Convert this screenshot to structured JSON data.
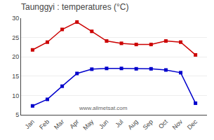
{
  "chart_data": {
    "type": "line",
    "title": "Taunggyi : temperatures (°C)",
    "categories": [
      "Jan",
      "Feb",
      "Mar",
      "Apr",
      "May",
      "Jun",
      "Jul",
      "Aug",
      "Sep",
      "Oct",
      "Nov",
      "Dec"
    ],
    "series": [
      {
        "color": "#cc0000",
        "marker": "square",
        "line_style": "solid",
        "values": [
          21.8,
          23.8,
          27.1,
          29.0,
          26.6,
          24.1,
          23.5,
          23.2,
          23.2,
          24.1,
          23.8,
          20.5
        ]
      },
      {
        "color": "#0000cc",
        "marker": "square",
        "line_style": "solid",
        "values": [
          7.3,
          9.0,
          12.4,
          15.7,
          16.8,
          17.0,
          17.0,
          16.9,
          16.9,
          16.6,
          15.9,
          8.0
        ]
      }
    ],
    "ylim": [
      5,
      30
    ],
    "yticks": [
      5,
      10,
      15,
      20,
      25,
      30
    ],
    "grid": "y",
    "annotations": [
      "www.allmetsat.com"
    ]
  }
}
